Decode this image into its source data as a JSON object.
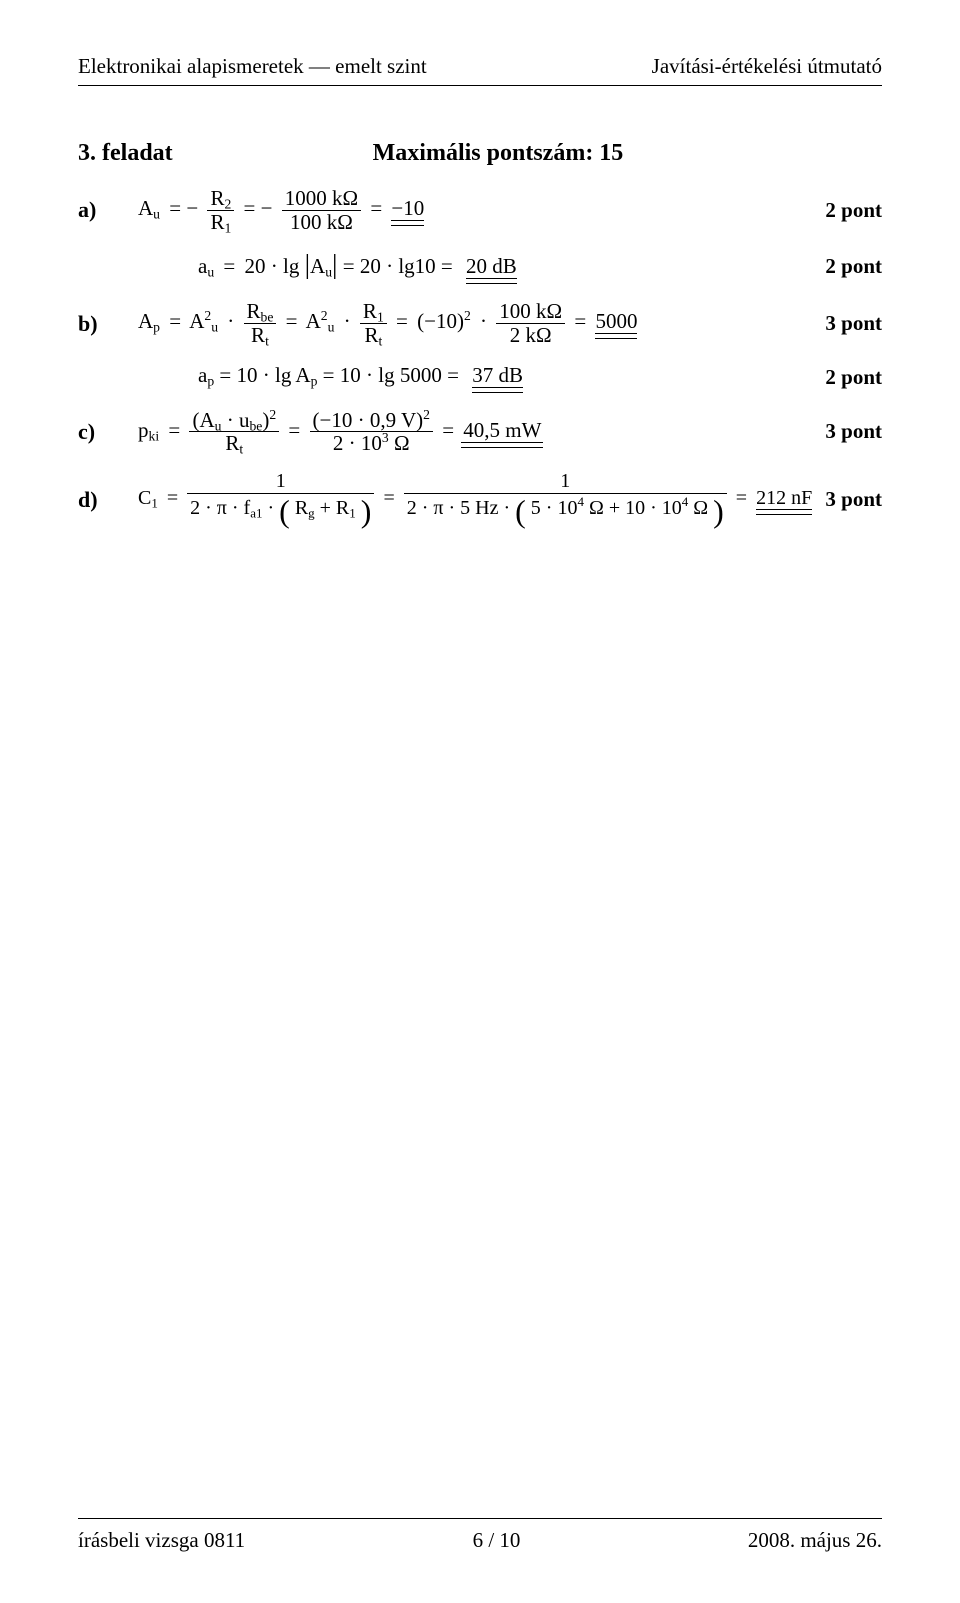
{
  "header": {
    "left": "Elektronikai alapismeretek — emelt szint",
    "right": "Javítási-értékelési útmutató"
  },
  "task": {
    "number": "3. feladat",
    "max": "Maximális pontszám: 15"
  },
  "lines": {
    "a": {
      "label": "a)",
      "lhs": "A",
      "lhs_sub": "u",
      "num1": "R",
      "num1_sub": "2",
      "den1": "R",
      "den1_sub": "1",
      "num2": "1000 kΩ",
      "den2": "100 kΩ",
      "result": "−10",
      "points": "2 pont"
    },
    "a2": {
      "expr1": "a",
      "expr1_sub": "u",
      "val": "20 · lg",
      "mid": "A",
      "mid_sub": "u",
      "mid2": "= 20 · lg10 =",
      "result": "20 dB",
      "points": "2 pont"
    },
    "b": {
      "label": "b)",
      "lhs": "A",
      "lhs_sub": "p",
      "t1": "A",
      "t1_sup": "2",
      "t1_sub": "u",
      "fr1_num": "R",
      "fr1_num_sub": "be",
      "fr1_den": "R",
      "fr1_den_sub": "t",
      "t2": "A",
      "t2_sup": "2",
      "t2_sub": "u",
      "fr2_num": "R",
      "fr2_num_sub": "1",
      "fr2_den": "R",
      "fr2_den_sub": "t",
      "base": "(−10)",
      "base_sup": "2",
      "fr3_num": "100 kΩ",
      "fr3_den": "2 kΩ",
      "result": "5000",
      "points": "3 pont"
    },
    "b2": {
      "lhs": "a",
      "lhs_sub": "p",
      "mid": "= 10 · lg A",
      "mid_sub": "p",
      "mid2": " = 10 · lg 5000 =",
      "result": "37 dB",
      "points": "2 pont"
    },
    "c": {
      "label": "c)",
      "lhs": "p",
      "lhs_sub": "ki",
      "num_a": "(A",
      "num_a_sub": "u",
      "num_b": "· u",
      "num_b_sub": "be",
      "num_close": ")",
      "num_sup": "2",
      "den": "R",
      "den_sub": "t",
      "num2": "(−10 · 0,9 V)",
      "num2_sup": "2",
      "den2a": "2 · 10",
      "den2_sup": "3",
      "den2b": " Ω",
      "result": "40,5 mW",
      "points": "3 pont"
    },
    "d": {
      "label": "d)",
      "lhs": "C",
      "lhs_sub": "1",
      "num1": "1",
      "den1a": "2 · π · f",
      "den1a_sub": "a1",
      "den1b": " · ",
      "den1c": "R",
      "den1c_sub": "g",
      "den1d": " + R",
      "den1d_sub": "1",
      "num2": "1",
      "den2a": "2 · π · 5 Hz · ",
      "den2b": "5 · 10",
      "den2b_sup": "4",
      "den2c": " Ω + 10 · 10",
      "den2c_sup": "4",
      "den2d": " Ω",
      "result": "212 nF",
      "points": "3 pont"
    }
  },
  "footer": {
    "left": "írásbeli vizsga 0811",
    "center": "6 / 10",
    "right": "2008. május 26."
  }
}
